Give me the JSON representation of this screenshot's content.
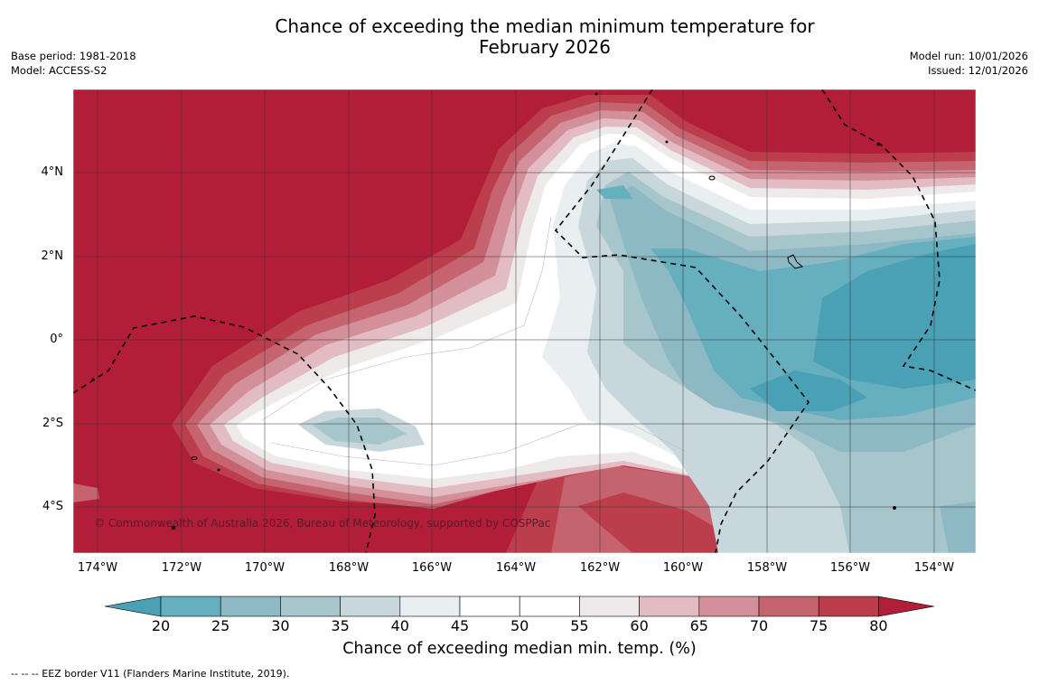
{
  "title": {
    "line1": "Chance of exceeding the median minimum temperature for",
    "line2": "February 2026"
  },
  "meta_left": {
    "base_period": "Base period: 1981-2018",
    "model": "Model: ACCESS-S2"
  },
  "meta_right": {
    "model_run": "Model run: 10/01/2026",
    "issued": "Issued: 12/01/2026"
  },
  "map": {
    "lat_labels": [
      "4°N",
      "2°N",
      "0°",
      "2°S",
      "4°S"
    ],
    "lon_labels": [
      "174°W",
      "172°W",
      "170°W",
      "168°W",
      "166°W",
      "164°W",
      "162°W",
      "160°W",
      "158°W",
      "156°W",
      "154°W"
    ],
    "copyright": "© Commonwealth of Australia 2026, Bureau of Meteorology, supported by COSPPac"
  },
  "colorbar": {
    "ticks": [
      "20",
      "25",
      "30",
      "35",
      "40",
      "45",
      "50",
      "55",
      "60",
      "65",
      "70",
      "75",
      "80"
    ],
    "colors": {
      "below20": "#4aa0b5",
      "c20_25": "#66afbe",
      "c25_30": "#8db9c4",
      "c30_35": "#a7c6cc",
      "c35_40": "#c8d7dc",
      "c40_45": "#e9eef0",
      "c45_50": "#ffffff",
      "c50_55": "#ffffff",
      "c55_60": "#eeeaea",
      "c60_65": "#e2bcc2",
      "c65_70": "#d4909a",
      "c70_75": "#c5646f",
      "c75_80": "#bc3e4d",
      "above80": "#b21e38"
    },
    "label": "Chance of exceeding median min. temp. (%)"
  },
  "footnote": "--  --  -- EEZ border V11 (Flanders Marine Institute, 2019)."
}
